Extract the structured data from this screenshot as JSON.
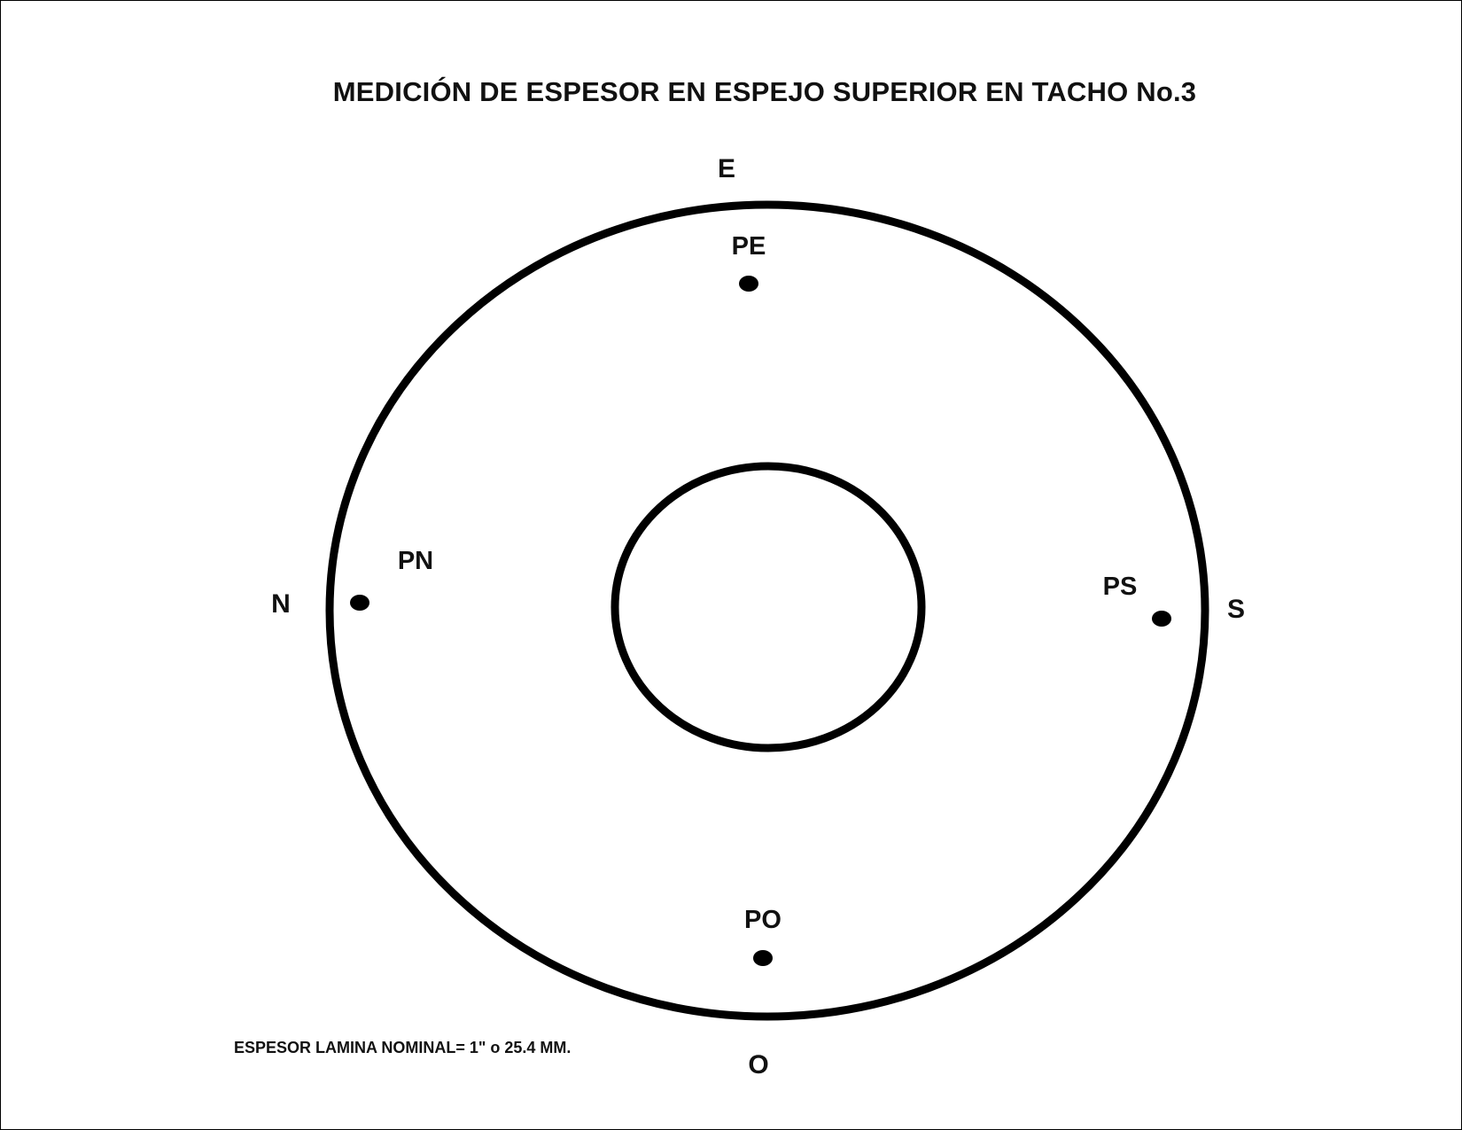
{
  "title": "MEDICIÓN DE ESPESOR EN ESPEJO SUPERIOR EN TACHO No.3",
  "directions": {
    "east": "E",
    "north": "N",
    "south": "S",
    "west": "O"
  },
  "points": {
    "east": "PE",
    "north": "PN",
    "south": "PS",
    "west": "PO"
  },
  "note": "ESPESOR LAMINA NOMINAL= 1\" o 25.4 MM."
}
